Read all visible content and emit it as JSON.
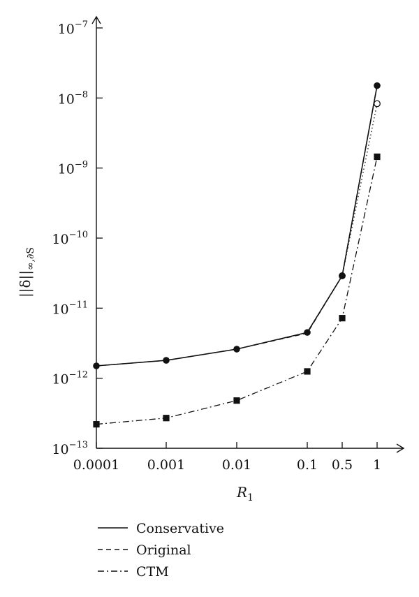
{
  "chart_data": {
    "type": "line",
    "title": "",
    "xlabel": "R",
    "xlabel_sub": "1",
    "ylabel": "||δ||",
    "ylabel_sub": "∞,∂S",
    "x_scale": "categorical",
    "y_scale": "log",
    "ylim": [
      1e-13,
      1e-07
    ],
    "categories": [
      "0.0001",
      "0.001",
      "0.01",
      "0.1",
      "0.5",
      "1"
    ],
    "y_ticks": [
      {
        "base": "10",
        "exp": "−13",
        "value": 1e-13
      },
      {
        "base": "10",
        "exp": "−12",
        "value": 1e-12
      },
      {
        "base": "10",
        "exp": "−11",
        "value": 1e-11
      },
      {
        "base": "10",
        "exp": "−10",
        "value": 1e-10
      },
      {
        "base": "10",
        "exp": "−9",
        "value": 1e-09
      },
      {
        "base": "10",
        "exp": "−8",
        "value": 1e-08
      },
      {
        "base": "10",
        "exp": "−7",
        "value": 1e-07
      }
    ],
    "series": [
      {
        "name": "Conservative",
        "line": "solid",
        "marker": "filled-circle",
        "values": [
          1.5e-12,
          1.8e-12,
          2.6e-12,
          4.5e-12,
          2.9e-11,
          1.5e-08
        ]
      },
      {
        "name": "Original",
        "line": "dashed",
        "marker": "filled-circle",
        "values": [
          1.5e-12,
          1.8e-12,
          2.6e-12,
          4.4e-12,
          2.9e-11,
          1.5e-08
        ]
      },
      {
        "name": "CTM",
        "line": "dashdot",
        "marker": "filled-square",
        "values": [
          2.2e-13,
          2.7e-13,
          4.8e-13,
          1.25e-12,
          7.2e-12,
          1.45e-09
        ]
      },
      {
        "name": "",
        "line": "dotted",
        "marker": "open-circle",
        "values": [
          null,
          null,
          null,
          null,
          2.9e-11,
          8.3e-09
        ]
      }
    ],
    "grid": false,
    "legend_position": "bottom-left"
  },
  "colors": {
    "ink": "#111111",
    "background": "#ffffff"
  }
}
